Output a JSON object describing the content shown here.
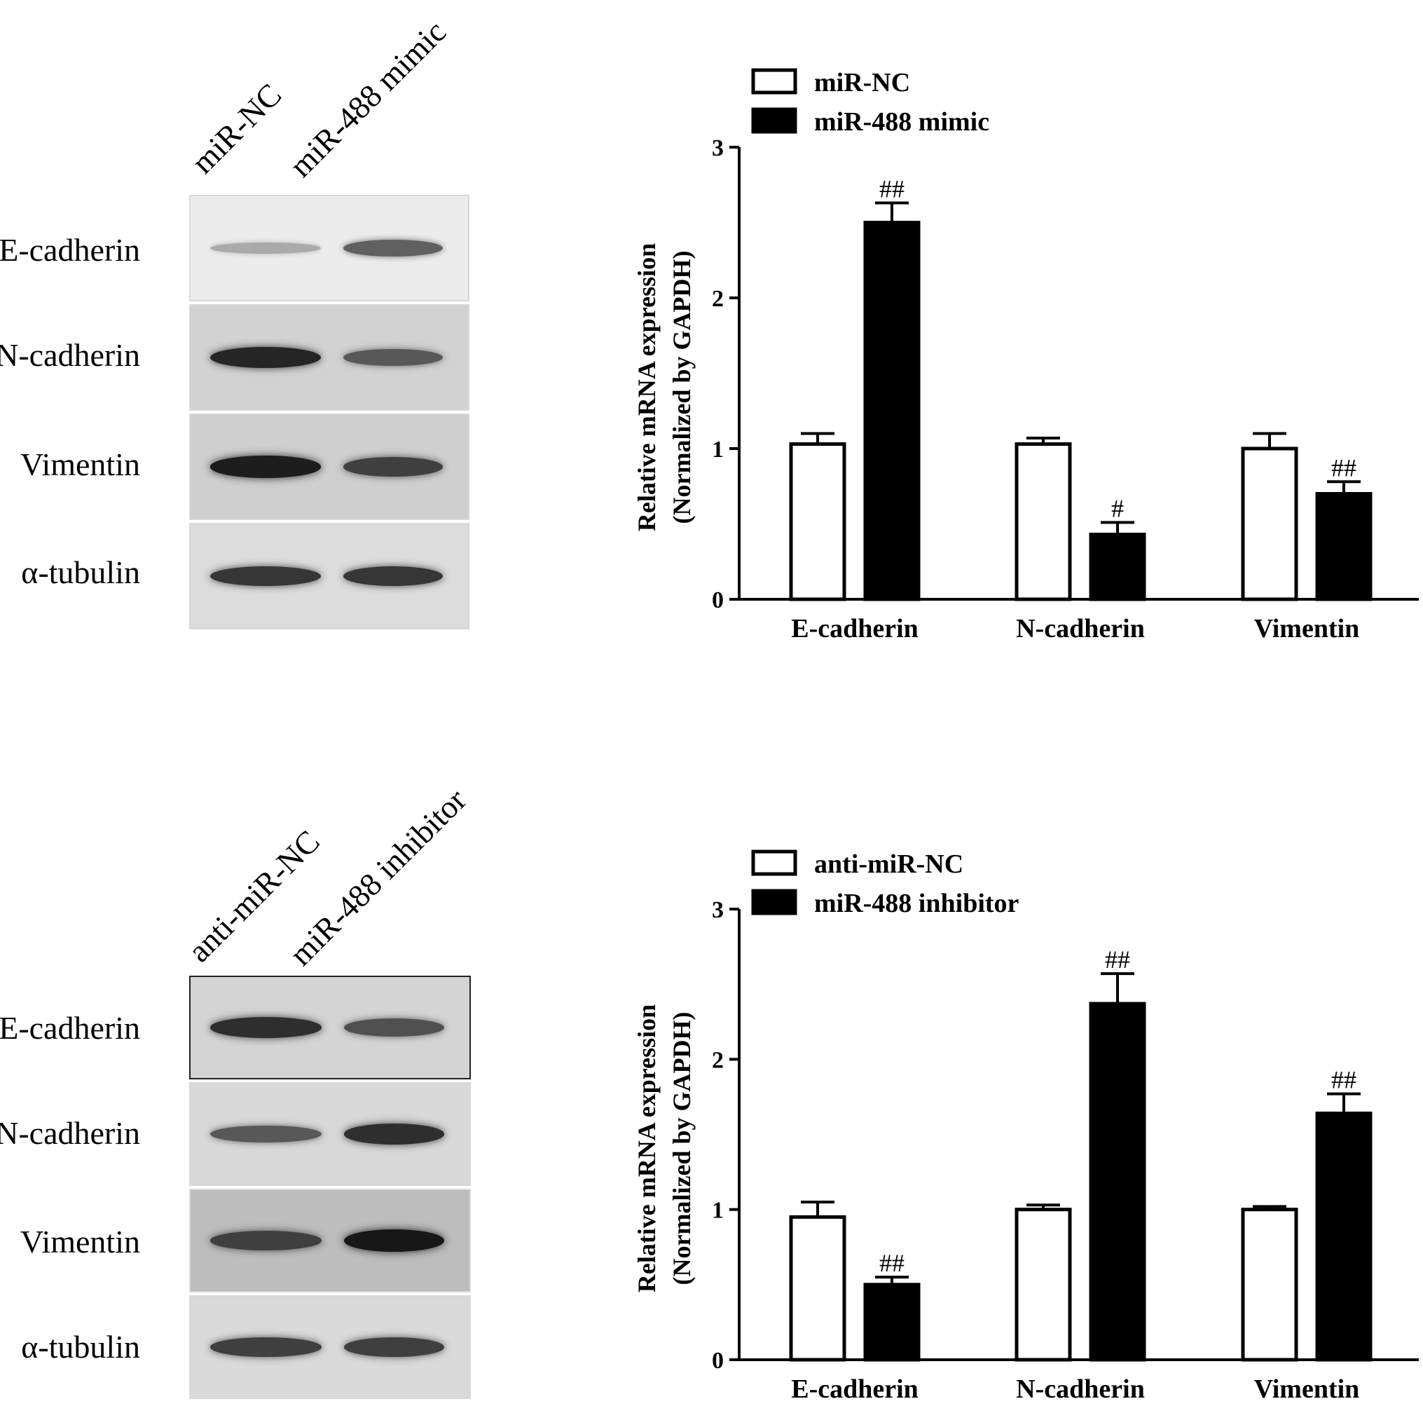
{
  "blots": [
    {
      "lanes": [
        "miR-NC",
        "miR-488 mimic"
      ],
      "rows": [
        {
          "label": "E-cadherin",
          "bg": "#ececec",
          "intensity": [
            0.12,
            0.55
          ]
        },
        {
          "label": "N-cadherin",
          "bg": "#d2d2d2",
          "intensity": [
            0.9,
            0.6
          ]
        },
        {
          "label": "Vimentin",
          "bg": "#cfcfcf",
          "intensity": [
            0.95,
            0.75
          ]
        },
        {
          "label": "α-tubulin",
          "bg": "#dcdcdc",
          "intensity": [
            0.8,
            0.8
          ]
        }
      ]
    },
    {
      "lanes": [
        "anti-miR-NC",
        "miR-488 inhibitor"
      ],
      "rows": [
        {
          "label": "E-cadherin",
          "bg": "#d4d4d4",
          "intensity": [
            0.85,
            0.65
          ]
        },
        {
          "label": "N-cadherin",
          "bg": "#d8d8d8",
          "intensity": [
            0.6,
            0.85
          ]
        },
        {
          "label": "Vimentin",
          "bg": "#bdbdbd",
          "intensity": [
            0.75,
            0.98
          ]
        },
        {
          "label": "α-tubulin",
          "bg": "#dadada",
          "intensity": [
            0.75,
            0.75
          ]
        }
      ]
    }
  ],
  "chart_data": [
    {
      "type": "bar",
      "categories": [
        "E-cadherin",
        "N-cadherin",
        "Vimentin"
      ],
      "series": [
        {
          "name": "miR-NC",
          "values": [
            1.03,
            1.03,
            1.0
          ],
          "errors": [
            0.07,
            0.04,
            0.1
          ],
          "fill": "#ffffff"
        },
        {
          "name": "miR-488 mimic",
          "values": [
            2.5,
            0.43,
            0.7
          ],
          "errors": [
            0.13,
            0.08,
            0.08
          ],
          "fill": "#000000"
        }
      ],
      "significance": [
        [
          "",
          "##"
        ],
        [
          "",
          "#"
        ],
        [
          "",
          "##"
        ]
      ],
      "ylabel": [
        "Relative mRNA expression",
        "(Normalized by GAPDH)"
      ],
      "yticks": [
        "0",
        "1",
        "2",
        "3"
      ],
      "ylim": [
        0,
        3
      ],
      "legend": "top-left"
    },
    {
      "type": "bar",
      "categories": [
        "E-cadherin",
        "N-cadherin",
        "Vimentin"
      ],
      "series": [
        {
          "name": "anti-miR-NC",
          "values": [
            0.95,
            1.0,
            1.0
          ],
          "errors": [
            0.1,
            0.03,
            0.02
          ],
          "fill": "#ffffff"
        },
        {
          "name": "miR-488 inhibitor",
          "values": [
            0.5,
            2.37,
            1.64
          ],
          "errors": [
            0.05,
            0.2,
            0.13
          ],
          "fill": "#000000"
        }
      ],
      "significance": [
        [
          "",
          "##"
        ],
        [
          "",
          "##"
        ],
        [
          "",
          "##"
        ]
      ],
      "ylabel": [
        "Relative mRNA expression",
        "(Normalized by GAPDH)"
      ],
      "yticks": [
        "0",
        "1",
        "2",
        "3"
      ],
      "ylim": [
        0,
        3
      ],
      "legend": "top-left"
    }
  ]
}
